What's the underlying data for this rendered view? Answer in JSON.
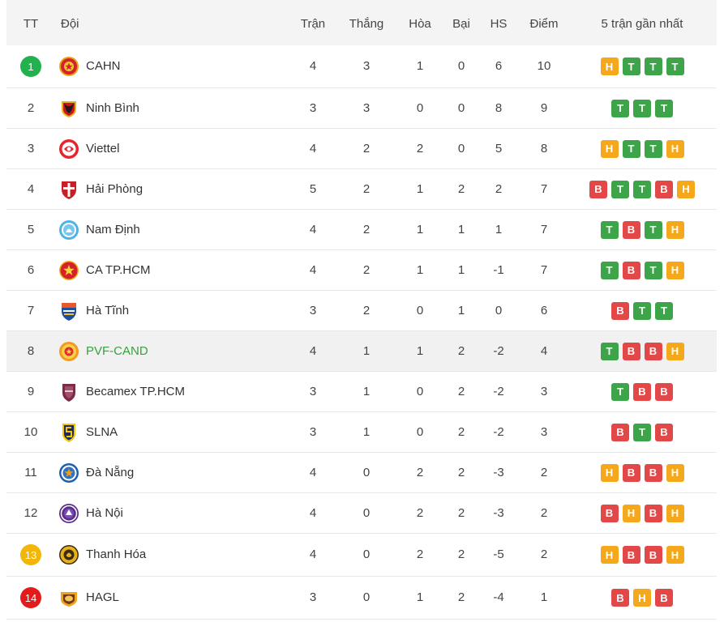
{
  "table": {
    "headers": {
      "rank": "TT",
      "team": "Đội",
      "played": "Trận",
      "won": "Thắng",
      "drawn": "Hòa",
      "lost": "Bại",
      "goal_difference": "HS",
      "points": "Điểm",
      "form": "5 trận gần nhất"
    },
    "rows": [
      {
        "rank": 1,
        "rank_badge": "#22b14c",
        "team": "CAHN",
        "logo_icon": "cahn-crest-icon",
        "played": 4,
        "won": 3,
        "drawn": 1,
        "lost": 0,
        "goal_difference": 6,
        "points": 10,
        "form": [
          "H",
          "T",
          "T",
          "T"
        ]
      },
      {
        "rank": 2,
        "team": "Ninh Bình",
        "logo_icon": "ninh-binh-crest-icon",
        "played": 3,
        "won": 3,
        "drawn": 0,
        "lost": 0,
        "goal_difference": 8,
        "points": 9,
        "form": [
          "T",
          "T",
          "T"
        ]
      },
      {
        "rank": 3,
        "team": "Viettel",
        "logo_icon": "viettel-crest-icon",
        "played": 4,
        "won": 2,
        "drawn": 2,
        "lost": 0,
        "goal_difference": 5,
        "points": 8,
        "form": [
          "H",
          "T",
          "T",
          "H"
        ]
      },
      {
        "rank": 4,
        "team": "Hải Phòng",
        "logo_icon": "hai-phong-crest-icon",
        "played": 5,
        "won": 2,
        "drawn": 1,
        "lost": 2,
        "goal_difference": 2,
        "points": 7,
        "form": [
          "B",
          "T",
          "T",
          "B",
          "H"
        ]
      },
      {
        "rank": 5,
        "team": "Nam Định",
        "logo_icon": "nam-dinh-crest-icon",
        "played": 4,
        "won": 2,
        "drawn": 1,
        "lost": 1,
        "goal_difference": 1,
        "points": 7,
        "form": [
          "T",
          "B",
          "T",
          "H"
        ]
      },
      {
        "rank": 6,
        "team": "CA TP.HCM",
        "logo_icon": "ca-tphcm-crest-icon",
        "played": 4,
        "won": 2,
        "drawn": 1,
        "lost": 1,
        "goal_difference": -1,
        "points": 7,
        "form": [
          "T",
          "B",
          "T",
          "H"
        ]
      },
      {
        "rank": 7,
        "team": "Hà Tĩnh",
        "logo_icon": "ha-tinh-crest-icon",
        "played": 3,
        "won": 2,
        "drawn": 0,
        "lost": 1,
        "goal_difference": 0,
        "points": 6,
        "form": [
          "B",
          "T",
          "T"
        ]
      },
      {
        "rank": 8,
        "team": "PVF-CAND",
        "logo_icon": "pvf-cand-crest-icon",
        "highlighted": true,
        "played": 4,
        "won": 1,
        "drawn": 1,
        "lost": 2,
        "goal_difference": -2,
        "points": 4,
        "form": [
          "T",
          "B",
          "B",
          "H"
        ]
      },
      {
        "rank": 9,
        "team": "Becamex TP.HCM",
        "logo_icon": "becamex-crest-icon",
        "played": 3,
        "won": 1,
        "drawn": 0,
        "lost": 2,
        "goal_difference": -2,
        "points": 3,
        "form": [
          "T",
          "B",
          "B"
        ]
      },
      {
        "rank": 10,
        "team": "SLNA",
        "logo_icon": "slna-crest-icon",
        "played": 3,
        "won": 1,
        "drawn": 0,
        "lost": 2,
        "goal_difference": -2,
        "points": 3,
        "form": [
          "B",
          "T",
          "B"
        ]
      },
      {
        "rank": 11,
        "team": "Đà Nẵng",
        "logo_icon": "da-nang-crest-icon",
        "played": 4,
        "won": 0,
        "drawn": 2,
        "lost": 2,
        "goal_difference": -3,
        "points": 2,
        "form": [
          "H",
          "B",
          "B",
          "H"
        ]
      },
      {
        "rank": 12,
        "team": "Hà Nội",
        "logo_icon": "ha-noi-crest-icon",
        "played": 4,
        "won": 0,
        "drawn": 2,
        "lost": 2,
        "goal_difference": -3,
        "points": 2,
        "form": [
          "B",
          "H",
          "B",
          "H"
        ]
      },
      {
        "rank": 13,
        "rank_badge": "#f1b607",
        "team": "Thanh Hóa",
        "logo_icon": "thanh-hoa-crest-icon",
        "played": 4,
        "won": 0,
        "drawn": 2,
        "lost": 2,
        "goal_difference": -5,
        "points": 2,
        "form": [
          "H",
          "B",
          "B",
          "H"
        ]
      },
      {
        "rank": 14,
        "rank_badge": "#e31b1b",
        "team": "HAGL",
        "logo_icon": "hagl-crest-icon",
        "played": 3,
        "won": 0,
        "drawn": 1,
        "lost": 2,
        "goal_difference": -4,
        "points": 1,
        "form": [
          "B",
          "H",
          "B"
        ]
      }
    ]
  },
  "colors": {
    "header_background": "#f4f4f4",
    "text": "#444444",
    "team_text": "#333333",
    "row_divider": "#e8e8e8",
    "highlighted_row_background": "#f1f1f1",
    "highlighted_team_text": "#38a13d",
    "form_colors": {
      "T": "#3ea44a",
      "H": "#f6a81d",
      "B": "#e24848"
    }
  }
}
